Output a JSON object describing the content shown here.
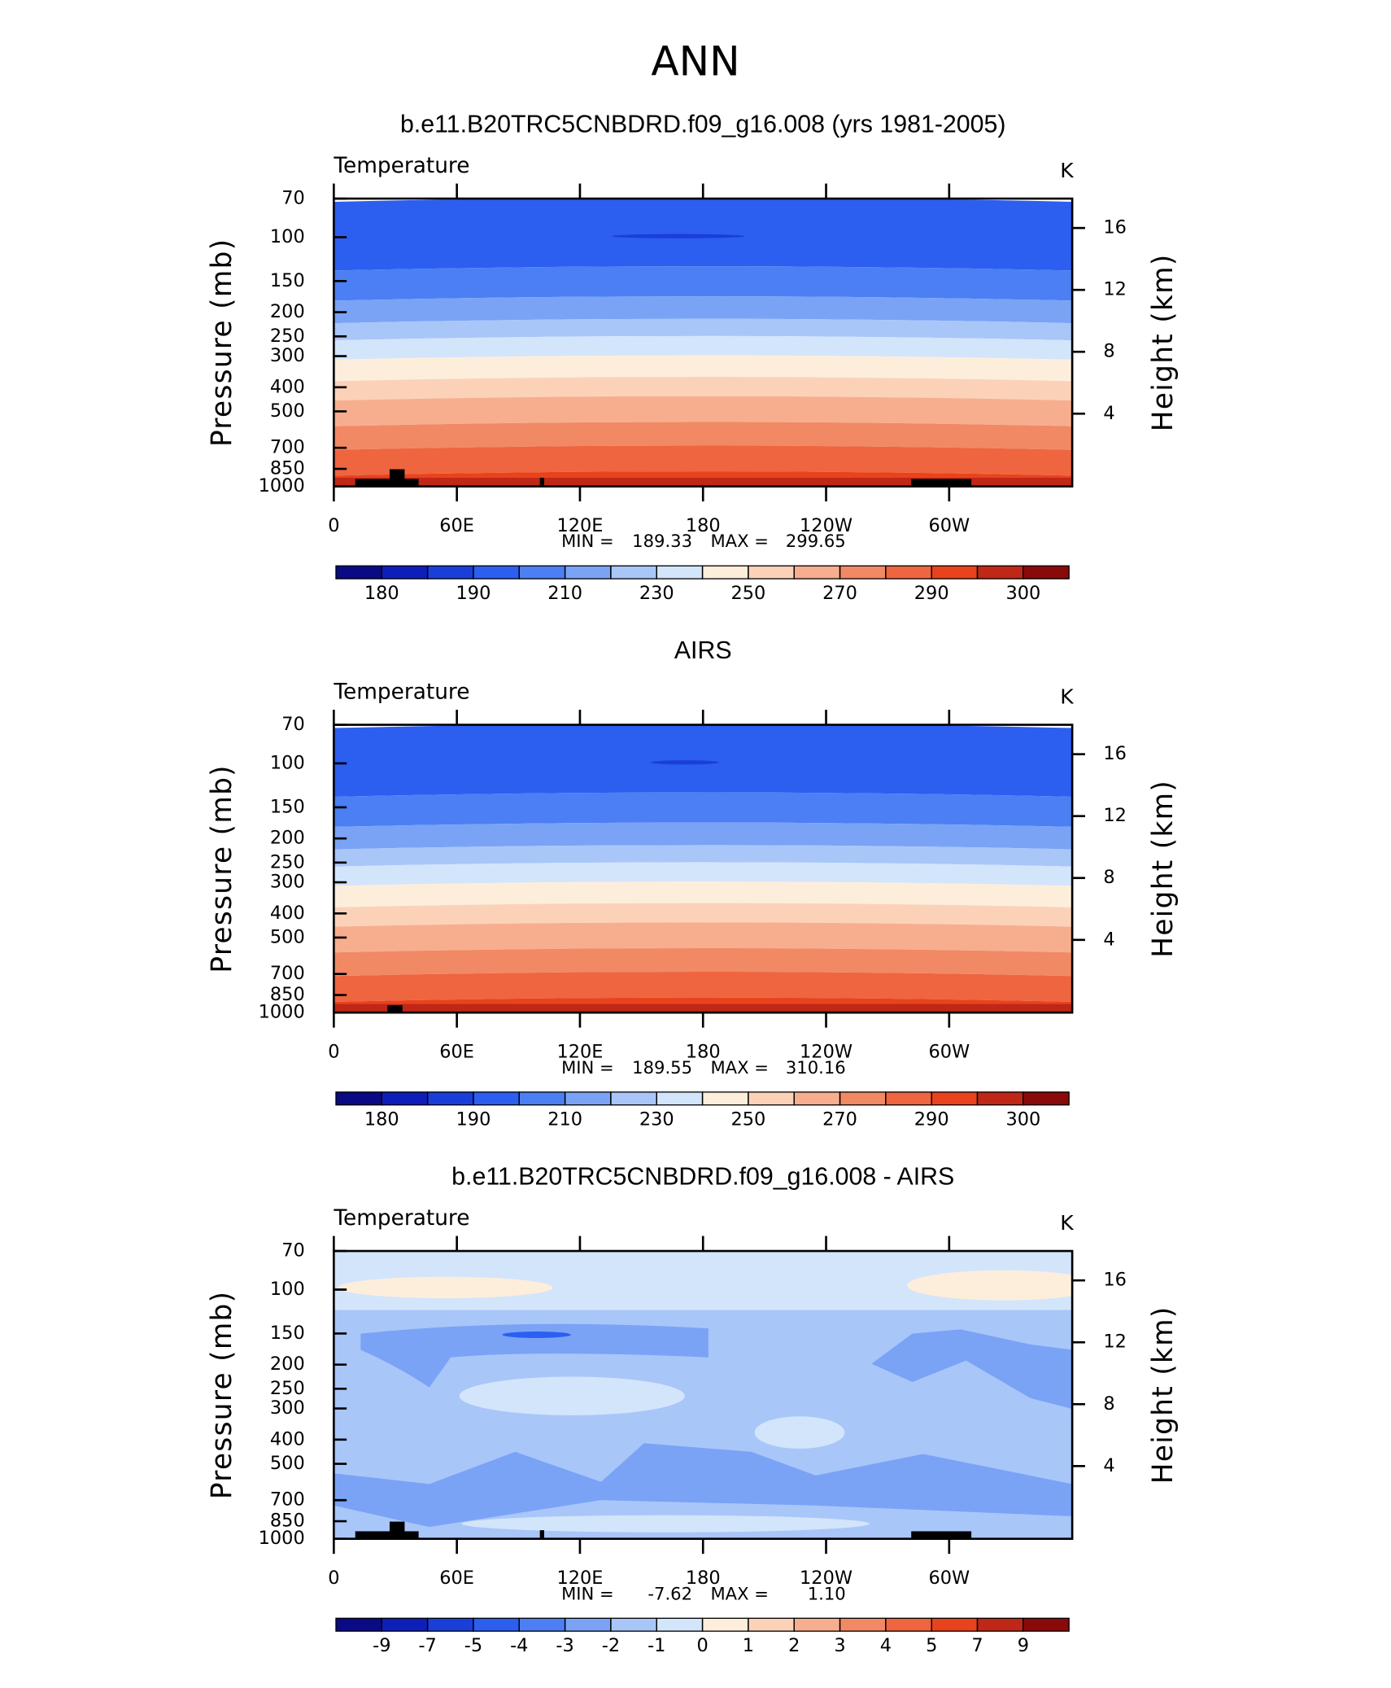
{
  "title": "ANN",
  "chart_data": [
    {
      "type": "contour",
      "title": "b.e11.B20TRC5CNBDRD.f09_g16.008 (yrs 1981-2005)",
      "variable": "Temperature",
      "units": "K",
      "ylabel": "Pressure (mb)",
      "y2label": "Height (km)",
      "min_label": "MIN =",
      "min": 189.33,
      "max_label": "MAX =",
      "max": 299.65,
      "xlim": [
        0,
        360
      ],
      "xticks": [
        0,
        {
          "value": 60,
          "label": "60E"
        },
        {
          "value": 120,
          "label": "120E"
        },
        180,
        {
          "value": 240,
          "label": "120W"
        },
        {
          "value": 300,
          "label": "60W"
        }
      ],
      "ylim": [
        1000,
        70
      ],
      "log_y": true,
      "yticks": [
        70,
        100,
        150,
        200,
        250,
        300,
        400,
        500,
        700,
        850,
        1000
      ],
      "y2lim": [
        -0.7,
        17.9
      ],
      "y2ticks": [
        4,
        8,
        12,
        16
      ],
      "levels": [
        180,
        185,
        190,
        200,
        210,
        220,
        230,
        240,
        250,
        260,
        270,
        280,
        290,
        295,
        300
      ],
      "colorbar_ticks": [
        180,
        190,
        210,
        230,
        250,
        270,
        290,
        300
      ],
      "colors": [
        "#0a0a85",
        "#0d1fb8",
        "#1a3fd9",
        "#2c5ef0",
        "#4b7ff3",
        "#7aa3f6",
        "#a9c6f9",
        "#d3e5fb",
        "#fdeedc",
        "#fbd2b8",
        "#f7ae8f",
        "#f18965",
        "#ee653f",
        "#e8431d",
        "#bf2716",
        "#8a0909"
      ]
    },
    {
      "type": "contour",
      "title": "AIRS",
      "variable": "Temperature",
      "units": "K",
      "ylabel": "Pressure (mb)",
      "y2label": "Height (km)",
      "min_label": "MIN =",
      "min": 189.55,
      "max_label": "MAX =",
      "max": 310.16,
      "xlim": [
        0,
        360
      ],
      "xticks": [
        0,
        {
          "value": 60,
          "label": "60E"
        },
        {
          "value": 120,
          "label": "120E"
        },
        180,
        {
          "value": 240,
          "label": "120W"
        },
        {
          "value": 300,
          "label": "60W"
        }
      ],
      "ylim": [
        1000,
        70
      ],
      "log_y": true,
      "yticks": [
        70,
        100,
        150,
        200,
        250,
        300,
        400,
        500,
        700,
        850,
        1000
      ],
      "y2lim": [
        -0.7,
        17.9
      ],
      "y2ticks": [
        4,
        8,
        12,
        16
      ],
      "levels": [
        180,
        185,
        190,
        200,
        210,
        220,
        230,
        240,
        250,
        260,
        270,
        280,
        290,
        295,
        300
      ],
      "colorbar_ticks": [
        180,
        190,
        210,
        230,
        250,
        270,
        290,
        300
      ],
      "colors": [
        "#0a0a85",
        "#0d1fb8",
        "#1a3fd9",
        "#2c5ef0",
        "#4b7ff3",
        "#7aa3f6",
        "#a9c6f9",
        "#d3e5fb",
        "#fdeedc",
        "#fbd2b8",
        "#f7ae8f",
        "#f18965",
        "#ee653f",
        "#e8431d",
        "#bf2716",
        "#8a0909"
      ]
    },
    {
      "type": "contour",
      "title": "b.e11.B20TRC5CNBDRD.f09_g16.008 - AIRS",
      "variable": "Temperature",
      "units": "K",
      "ylabel": "Pressure (mb)",
      "y2label": "Height (km)",
      "min_label": "MIN =",
      "min": -7.62,
      "max_label": "MAX =",
      "max": {
        "value": 1.1,
        "label": "1.10"
      },
      "xlim": [
        0,
        360
      ],
      "xticks": [
        0,
        {
          "value": 60,
          "label": "60E"
        },
        {
          "value": 120,
          "label": "120E"
        },
        180,
        {
          "value": 240,
          "label": "120W"
        },
        {
          "value": 300,
          "label": "60W"
        }
      ],
      "ylim": [
        1000,
        70
      ],
      "log_y": true,
      "yticks": [
        70,
        100,
        150,
        200,
        250,
        300,
        400,
        500,
        700,
        850,
        1000
      ],
      "y2lim": [
        -0.7,
        17.9
      ],
      "y2ticks": [
        4,
        8,
        12,
        16
      ],
      "levels": [
        -9,
        -7,
        -5,
        -4,
        -3,
        -2,
        -1,
        0,
        1,
        2,
        3,
        4,
        5,
        7,
        9
      ],
      "colorbar_ticks": [
        -9,
        -7,
        -5,
        -4,
        -3,
        -2,
        -1,
        0,
        1,
        2,
        3,
        4,
        5,
        7,
        9
      ],
      "colors": [
        "#0a0a85",
        "#0d1fb8",
        "#1a3fd9",
        "#2c5ef0",
        "#4b7ff3",
        "#7aa3f6",
        "#a9c6f9",
        "#d3e5fb",
        "#fdeedc",
        "#fbd2b8",
        "#f7ae8f",
        "#f18965",
        "#ee653f",
        "#e8431d",
        "#bf2716",
        "#8a0909"
      ]
    }
  ]
}
